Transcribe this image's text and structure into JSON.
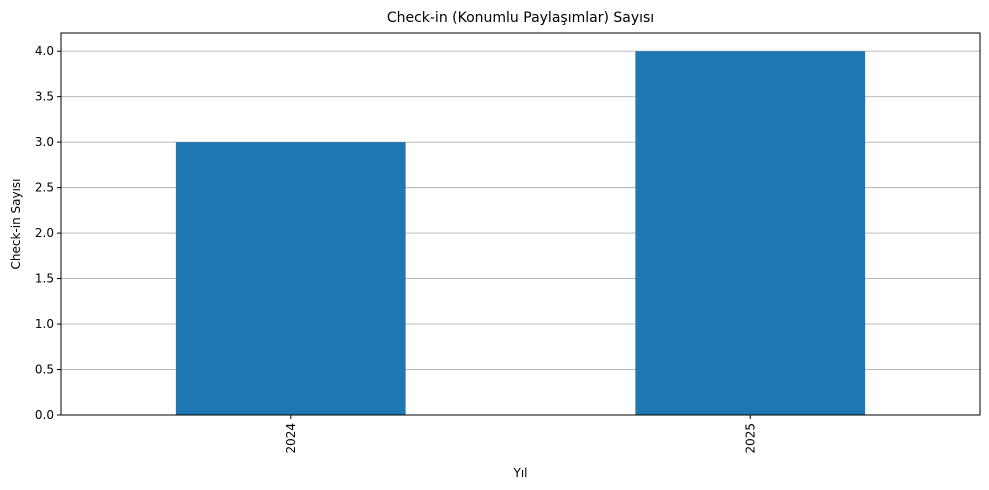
{
  "chart_data": {
    "type": "bar",
    "title": "Check-in (Konumlu Paylaşımlar) Sayısı",
    "xlabel": "Yıl",
    "ylabel": "Check-in Sayısı",
    "categories": [
      "2024",
      "2025"
    ],
    "values": [
      3,
      4
    ],
    "ylim": [
      0,
      4.2
    ],
    "yticks": [
      "0.0",
      "0.5",
      "1.0",
      "1.5",
      "2.0",
      "2.5",
      "3.0",
      "3.5",
      "4.0"
    ],
    "grid": "y-axis",
    "x_tick_rotation": "vertical",
    "bar_color": "#1f77b4",
    "grid_color": "#b0b0b0"
  }
}
